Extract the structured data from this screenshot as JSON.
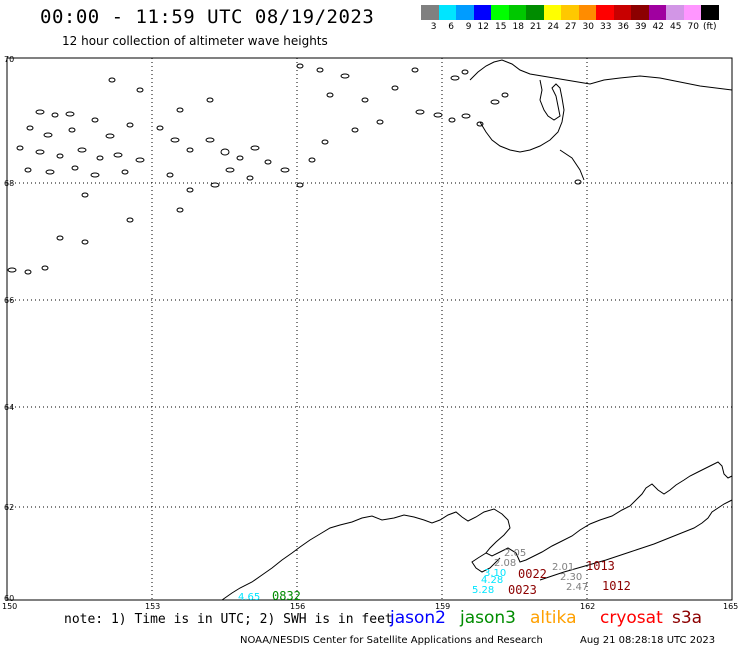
{
  "header": {
    "title": "00:00 - 11:59 UTC 08/19/2023",
    "subtitle": "12 hour collection of altimeter wave heights"
  },
  "legend": {
    "unit": "(ft)",
    "bins": [
      {
        "label": "3",
        "color": "#808080"
      },
      {
        "label": "6",
        "color": "#00e5ff"
      },
      {
        "label": "9",
        "color": "#009cff"
      },
      {
        "label": "12",
        "color": "#0000ff"
      },
      {
        "label": "15",
        "color": "#00ff00"
      },
      {
        "label": "18",
        "color": "#00c800"
      },
      {
        "label": "21",
        "color": "#008c00"
      },
      {
        "label": "24",
        "color": "#ffff00"
      },
      {
        "label": "27",
        "color": "#ffc800"
      },
      {
        "label": "30",
        "color": "#ff8c00"
      },
      {
        "label": "33",
        "color": "#ff0000"
      },
      {
        "label": "36",
        "color": "#c80000"
      },
      {
        "label": "39",
        "color": "#8c0000"
      },
      {
        "label": "42",
        "color": "#a000a0"
      },
      {
        "label": "45",
        "color": "#d296e6"
      },
      {
        "label": "70",
        "color": "#ff96ff"
      },
      {
        "label": "",
        "color": "#000000"
      }
    ]
  },
  "map": {
    "lat_labels": [
      "70",
      "68",
      "66",
      "64",
      "62",
      "60"
    ],
    "lon_labels": [
      "150",
      "153",
      "156",
      "159",
      "162",
      "165"
    ],
    "wave_observations": [
      {
        "value": "4.65",
        "color": "#00e5ff"
      },
      {
        "value": "2.05",
        "color": "#808080"
      },
      {
        "value": "2.08",
        "color": "#808080"
      },
      {
        "value": "3.10",
        "color": "#00e5ff"
      },
      {
        "value": "4.28",
        "color": "#00e5ff"
      },
      {
        "value": "5.28",
        "color": "#00e5ff"
      },
      {
        "value": "2.01",
        "color": "#808080"
      },
      {
        "value": "2.30",
        "color": "#808080"
      },
      {
        "value": "2.47",
        "color": "#808080"
      }
    ],
    "pass_times": [
      {
        "time": "0832",
        "color": "#008c00"
      },
      {
        "time": "0022",
        "color": "#8c0000"
      },
      {
        "time": "0023",
        "color": "#8c0000"
      },
      {
        "time": "1013",
        "color": "#8c0000"
      },
      {
        "time": "1012",
        "color": "#8c0000"
      }
    ]
  },
  "footer": {
    "note": "note: 1) Time is in UTC; 2) SWH is in feet",
    "satellites": [
      {
        "name": "jason2",
        "color": "#0000ff"
      },
      {
        "name": "jason3",
        "color": "#008c00"
      },
      {
        "name": "altika",
        "color": "#ffa000"
      },
      {
        "name": "cryosat",
        "color": "#ff0000"
      },
      {
        "name": "s3a",
        "color": "#8c0000"
      }
    ],
    "credit": "NOAA/NESDIS Center for Satellite Applications and Research",
    "timestamp": "Aug 21 08:28:18 UTC 2023"
  }
}
